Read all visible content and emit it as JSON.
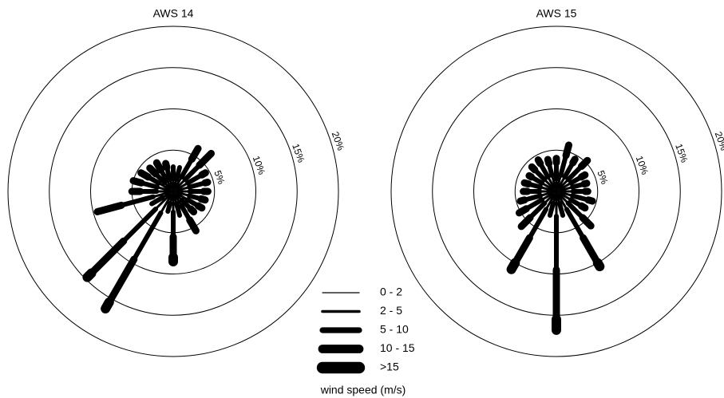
{
  "chart_data": [
    {
      "type": "wind-rose",
      "title": "AWS 14",
      "theta": [
        0,
        15,
        30,
        45,
        60,
        75,
        90,
        105,
        120,
        135,
        150,
        165,
        180,
        195,
        210,
        225,
        240,
        255,
        270,
        285,
        300,
        315,
        330,
        345
      ],
      "rlim": [
        0,
        20
      ],
      "rticks": [
        {
          "value": 5,
          "label": "5%"
        },
        {
          "value": 10,
          "label": "10%"
        },
        {
          "value": 15,
          "label": "15%"
        },
        {
          "value": 20,
          "label": "20%"
        }
      ],
      "legend_title": "wind speed (m/s)",
      "series": [
        {
          "name": "0 - 2",
          "color": "#000000",
          "values": [
            0.5,
            0.5,
            0.5,
            0.5,
            0.5,
            0.5,
            0.5,
            0.5,
            0.5,
            0.5,
            0.5,
            0.5,
            0.5,
            0.5,
            0.5,
            0.5,
            0.5,
            0.5,
            0.5,
            0.5,
            0.5,
            0.5,
            0.5,
            0.5
          ]
        },
        {
          "name": "2 - 5",
          "color": "#000000",
          "values": [
            1.0,
            1.0,
            1.5,
            1.5,
            1.5,
            1.5,
            1.5,
            1.5,
            1.5,
            1.0,
            1.5,
            1.0,
            2.0,
            1.0,
            2.5,
            2.5,
            1.0,
            2.0,
            1.5,
            1.5,
            1.5,
            1.0,
            1.0,
            1.0
          ]
        },
        {
          "name": "5 - 10",
          "color": "#000000",
          "values": [
            1.5,
            1.5,
            2.5,
            2.5,
            2.0,
            2.0,
            1.7,
            1.5,
            1.5,
            1.5,
            2.0,
            1.5,
            3.0,
            1.0,
            6.5,
            5.5,
            1.5,
            4.0,
            2.0,
            2.0,
            1.5,
            1.5,
            1.5,
            1.5
          ]
        },
        {
          "name": "10 - 15",
          "color": "#000000",
          "values": [
            0,
            0,
            1.5,
            2.0,
            0.5,
            0.3,
            0.5,
            0.5,
            0.5,
            0.5,
            1.5,
            0,
            2.5,
            0,
            6.0,
            5.5,
            0,
            3.0,
            1.0,
            1.0,
            1.0,
            1.0,
            1.0,
            0.5
          ]
        },
        {
          "name": ">15",
          "color": "#000000",
          "values": [
            0,
            0,
            0,
            0,
            0,
            0,
            0,
            0,
            0,
            0,
            0,
            0,
            0.5,
            0,
            0.9,
            0.7,
            0,
            0,
            0,
            0,
            0,
            0,
            0,
            0
          ]
        }
      ]
    },
    {
      "type": "wind-rose",
      "title": "AWS 15",
      "theta": [
        0,
        15,
        30,
        45,
        60,
        75,
        90,
        105,
        120,
        135,
        150,
        165,
        180,
        195,
        210,
        225,
        240,
        255,
        270,
        285,
        300,
        315,
        330,
        345
      ],
      "rlim": [
        0,
        20
      ],
      "rticks": [
        {
          "value": 5,
          "label": "5%"
        },
        {
          "value": 10,
          "label": "10%"
        },
        {
          "value": 15,
          "label": "15%"
        },
        {
          "value": 20,
          "label": "20%"
        }
      ],
      "series": [
        {
          "name": "0 - 2",
          "color": "#000000",
          "values": [
            0.5,
            0.5,
            0.5,
            0.5,
            0.5,
            0.5,
            0.5,
            0.5,
            0.5,
            0.5,
            0.5,
            0.5,
            0.5,
            0.5,
            0.5,
            0.5,
            0.5,
            0.5,
            0.5,
            0.5,
            0.5,
            0.5,
            0.5,
            0.5
          ]
        },
        {
          "name": "2 - 5",
          "color": "#000000",
          "values": [
            1.0,
            1.5,
            1.5,
            1.5,
            1.5,
            1.5,
            1.5,
            1.5,
            1.5,
            1.5,
            2.0,
            1.0,
            2.5,
            1.0,
            2.0,
            1.5,
            1.5,
            1.5,
            1.5,
            1.5,
            1.5,
            1.5,
            1.5,
            1.5
          ]
        },
        {
          "name": "5 - 10",
          "color": "#000000",
          "values": [
            2.0,
            2.5,
            2.0,
            2.3,
            1.5,
            1.5,
            1.5,
            2.0,
            1.5,
            2.5,
            4.0,
            1.5,
            6.5,
            1.5,
            4.0,
            2.5,
            2.2,
            2.0,
            1.5,
            1.5,
            1.5,
            1.7,
            1.9,
            1.5
          ]
        },
        {
          "name": "10 - 15",
          "color": "#000000",
          "values": [
            0.5,
            1.3,
            0.5,
            1.0,
            0.5,
            0.3,
            0.3,
            0.5,
            0.5,
            1.4,
            3.5,
            0,
            6.0,
            0,
            3.5,
            1.5,
            1.0,
            0.5,
            0.5,
            0.5,
            0.3,
            0.5,
            0.5,
            0.5
          ]
        },
        {
          "name": ">15",
          "color": "#000000",
          "values": [
            0,
            0,
            0,
            0,
            0,
            0,
            0,
            0,
            0,
            0,
            0.5,
            0,
            1.3,
            0,
            0.9,
            0,
            0,
            0,
            0,
            0,
            0,
            0,
            0,
            0
          ]
        }
      ]
    }
  ]
}
